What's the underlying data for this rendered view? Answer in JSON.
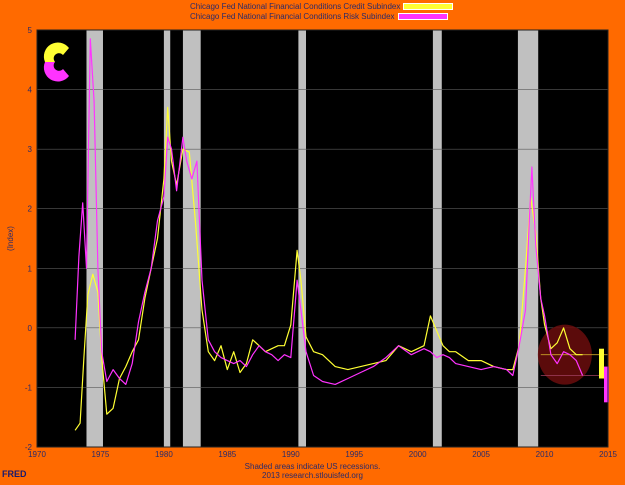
{
  "legend": {
    "series1": "Chicago Fed National Financial Conditions Credit Subindex",
    "series2": "Chicago Fed National Financial Conditions Risk Subindex"
  },
  "footer": {
    "line1": "Shaded areas indicate US recessions.",
    "line2": "2013 research.stlouisfed.org"
  },
  "brand": "FRED",
  "colors": {
    "background": "#ff6a00",
    "plot_bg": "#000000",
    "recession": "#c0c0c0",
    "credit": "#ffff33",
    "risk": "#ff33ff"
  },
  "chart_data": {
    "type": "line",
    "ylabel": "(Index)",
    "xlabel": "",
    "xlim": [
      1970,
      2015
    ],
    "ylim": [
      -2,
      5
    ],
    "x_ticks": [
      1970,
      1975,
      1980,
      1985,
      1990,
      1995,
      2000,
      2005,
      2010,
      2015
    ],
    "y_ticks": [
      -2,
      -1,
      0,
      1,
      2,
      3,
      4,
      5
    ],
    "grid": true,
    "legend_position": "top-center",
    "recessions": [
      [
        1973.9,
        1975.2
      ],
      [
        1980.0,
        1980.5
      ],
      [
        1981.5,
        1982.9
      ],
      [
        1990.6,
        1991.2
      ],
      [
        2001.2,
        2001.9
      ],
      [
        2007.9,
        2009.5
      ]
    ],
    "series": [
      {
        "name": "Chicago Fed National Financial Conditions Credit Subindex",
        "color": "#ffff33",
        "x": [
          1973.0,
          1973.4,
          1973.7,
          1974.0,
          1974.4,
          1974.8,
          1975.1,
          1975.5,
          1976.0,
          1976.5,
          1977.0,
          1977.5,
          1978.0,
          1978.5,
          1979.0,
          1979.5,
          1980.0,
          1980.3,
          1980.6,
          1981.0,
          1981.5,
          1982.0,
          1982.5,
          1983.0,
          1983.5,
          1984.0,
          1984.5,
          1985.0,
          1985.5,
          1986.0,
          1986.5,
          1987.0,
          1987.5,
          1988.0,
          1988.5,
          1989.0,
          1989.5,
          1990.0,
          1990.5,
          1990.8,
          1991.2,
          1991.8,
          1992.5,
          1993.5,
          1994.5,
          1995.5,
          1996.5,
          1997.5,
          1998.5,
          1999.5,
          2000.5,
          2001.0,
          2001.5,
          2002.0,
          2002.5,
          2003.0,
          2004.0,
          2005.0,
          2006.0,
          2007.0,
          2007.5,
          2008.0,
          2008.5,
          2008.9,
          2009.3,
          2009.7,
          2010.0,
          2010.5,
          2011.0,
          2011.5,
          2012.0,
          2012.5,
          2013.0
        ],
        "values": [
          -1.72,
          -1.6,
          -0.5,
          0.55,
          0.9,
          0.6,
          -0.5,
          -1.45,
          -1.35,
          -0.85,
          -0.65,
          -0.4,
          -0.2,
          0.5,
          1.0,
          1.5,
          2.5,
          3.7,
          2.8,
          2.4,
          3.0,
          2.95,
          1.75,
          0.3,
          -0.4,
          -0.55,
          -0.3,
          -0.7,
          -0.4,
          -0.75,
          -0.6,
          -0.2,
          -0.3,
          -0.4,
          -0.35,
          -0.3,
          -0.3,
          0.05,
          1.3,
          0.8,
          -0.15,
          -0.4,
          -0.45,
          -0.65,
          -0.7,
          -0.65,
          -0.6,
          -0.55,
          -0.3,
          -0.4,
          -0.3,
          0.2,
          -0.05,
          -0.3,
          -0.4,
          -0.4,
          -0.55,
          -0.55,
          -0.65,
          -0.7,
          -0.7,
          -0.3,
          1.0,
          2.2,
          1.6,
          0.5,
          0.05,
          -0.35,
          -0.25,
          0.0,
          -0.35,
          -0.45,
          -0.45
        ]
      },
      {
        "name": "Chicago Fed National Financial Conditions Risk Subindex",
        "color": "#ff33ff",
        "x": [
          1973.0,
          1973.3,
          1973.6,
          1973.9,
          1974.2,
          1974.5,
          1974.8,
          1975.1,
          1975.5,
          1976.0,
          1976.5,
          1977.0,
          1977.5,
          1978.0,
          1978.5,
          1979.0,
          1979.5,
          1980.0,
          1980.3,
          1980.6,
          1981.0,
          1981.5,
          1981.8,
          1982.2,
          1982.6,
          1983.0,
          1983.5,
          1984.0,
          1984.5,
          1985.0,
          1985.5,
          1986.0,
          1986.5,
          1987.0,
          1987.5,
          1988.0,
          1988.5,
          1989.0,
          1989.5,
          1990.0,
          1990.5,
          1990.8,
          1991.2,
          1991.8,
          1992.5,
          1993.5,
          1994.5,
          1995.5,
          1996.5,
          1997.5,
          1998.5,
          1999.5,
          2000.5,
          2001.0,
          2001.5,
          2002.0,
          2002.5,
          2003.0,
          2004.0,
          2005.0,
          2006.0,
          2007.0,
          2007.5,
          2008.0,
          2008.5,
          2008.8,
          2009.0,
          2009.3,
          2009.7,
          2010.0,
          2010.5,
          2011.0,
          2011.5,
          2012.0,
          2012.5,
          2013.0
        ],
        "values": [
          -0.2,
          1.2,
          2.1,
          1.0,
          4.85,
          3.8,
          1.0,
          -0.4,
          -0.9,
          -0.7,
          -0.85,
          -0.95,
          -0.6,
          0.1,
          0.6,
          1.0,
          1.8,
          2.2,
          3.2,
          3.0,
          2.3,
          3.2,
          2.8,
          2.5,
          2.8,
          0.8,
          -0.2,
          -0.4,
          -0.5,
          -0.55,
          -0.6,
          -0.55,
          -0.65,
          -0.45,
          -0.3,
          -0.4,
          -0.45,
          -0.55,
          -0.45,
          -0.5,
          0.8,
          0.3,
          -0.4,
          -0.8,
          -0.9,
          -0.95,
          -0.85,
          -0.75,
          -0.65,
          -0.5,
          -0.3,
          -0.45,
          -0.35,
          -0.4,
          -0.5,
          -0.45,
          -0.5,
          -0.6,
          -0.65,
          -0.7,
          -0.65,
          -0.7,
          -0.8,
          -0.3,
          0.3,
          1.8,
          2.7,
          1.4,
          0.5,
          0.2,
          -0.45,
          -0.6,
          -0.4,
          -0.45,
          -0.55,
          -0.8
        ]
      }
    ]
  }
}
